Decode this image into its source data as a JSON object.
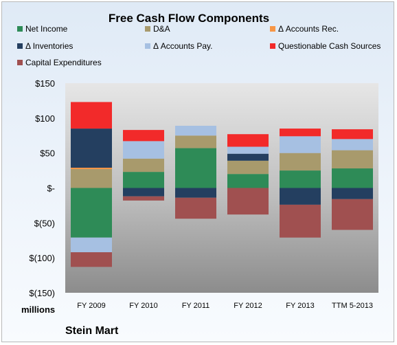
{
  "chart_data": {
    "type": "bar",
    "stacked": true,
    "title": "Free Cash Flow Components",
    "ylabel": "millions",
    "company": "Stein Mart",
    "categories": [
      "FY 2009",
      "FY 2010",
      "FY 2011",
      "FY 2012",
      "FY 2013",
      "TTM 5-2013"
    ],
    "ylim": [
      -150,
      150
    ],
    "yticks": [
      150,
      100,
      50,
      0,
      -50,
      -100,
      -150
    ],
    "ytick_labels": [
      "$150",
      "$100",
      "$50",
      "$-",
      "$(50)",
      "$(100)",
      "$(150)"
    ],
    "legend_position": "top",
    "grid": false,
    "series": [
      {
        "name": "Net Income",
        "color": "#2e8b57",
        "values": [
          -71,
          23,
          57,
          20,
          25,
          28
        ]
      },
      {
        "name": "D&A",
        "color": "#a89a6c",
        "values": [
          27,
          19,
          18,
          19,
          25,
          26
        ]
      },
      {
        "name": "Δ Accounts Rec.",
        "color": "#f79646",
        "values": [
          2,
          0,
          0,
          0,
          0,
          0
        ]
      },
      {
        "name": "Δ Inventories",
        "color": "#243f60",
        "values": [
          56,
          -12,
          -14,
          10,
          -24,
          -16
        ]
      },
      {
        "name": "Δ Accounts Pay.",
        "color": "#a6c0e2",
        "values": [
          -21,
          25,
          14,
          10,
          24,
          16
        ]
      },
      {
        "name": "Questionable Cash Sources",
        "color": "#f22a2a",
        "values": [
          38,
          16,
          0,
          18,
          11,
          14
        ]
      },
      {
        "name": "Capital Expenditures",
        "color": "#a05050",
        "values": [
          -21,
          -6,
          -30,
          -38,
          -47,
          -44
        ]
      }
    ]
  }
}
